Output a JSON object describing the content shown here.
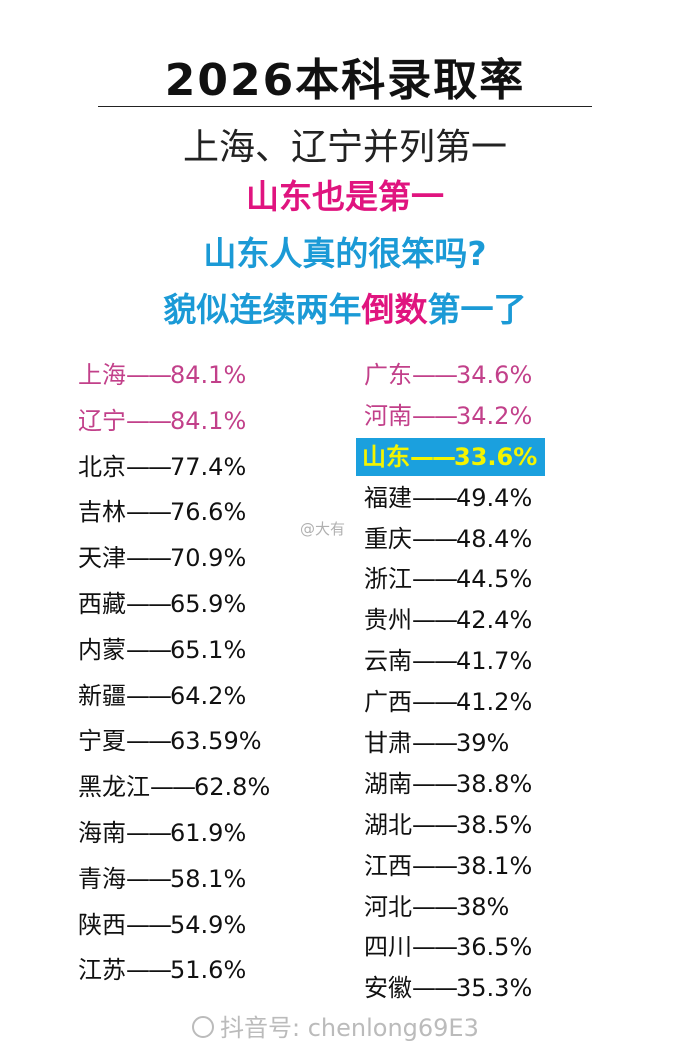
{
  "header": {
    "title": "2026本科录取率",
    "line1": "上海、辽宁并列第一",
    "line2": "山东也是第一",
    "line3": "山东人真的很笨吗?",
    "line4_a": "貌似连续两年",
    "line4_b": "倒数",
    "line4_c": "第一了"
  },
  "colors": {
    "pink": "#e0147f",
    "blue": "#1b9ad6",
    "highlight_bg": "#1ba0de",
    "highlight_text": "#f4f400"
  },
  "left_list": [
    {
      "province": "上海",
      "sep": "——",
      "rate": "84.1%",
      "style": "pink"
    },
    {
      "province": "辽宁",
      "sep": "——",
      "rate": "84.1%",
      "style": "pink"
    },
    {
      "province": "北京",
      "sep": "——",
      "rate": "77.4%",
      "style": "normal"
    },
    {
      "province": "吉林",
      "sep": "——",
      "rate": "76.6%",
      "style": "normal"
    },
    {
      "province": "天津",
      "sep": "——",
      "rate": "70.9%",
      "style": "normal"
    },
    {
      "province": "西藏",
      "sep": "——",
      "rate": "65.9%",
      "style": "normal"
    },
    {
      "province": "内蒙",
      "sep": "——",
      "rate": "65.1%",
      "style": "normal"
    },
    {
      "province": "新疆",
      "sep": "——",
      "rate": "64.2%",
      "style": "normal"
    },
    {
      "province": "宁夏",
      "sep": "——",
      "rate": "63.59%",
      "style": "normal"
    },
    {
      "province": "黑龙江",
      "sep": "——",
      "rate": "62.8%",
      "style": "normal"
    },
    {
      "province": "海南",
      "sep": "——",
      "rate": "61.9%",
      "style": "normal"
    },
    {
      "province": "青海",
      "sep": "——",
      "rate": "58.1%",
      "style": "normal"
    },
    {
      "province": "陕西",
      "sep": "——",
      "rate": "54.9%",
      "style": "normal"
    },
    {
      "province": "江苏",
      "sep": "——",
      "rate": "51.6%",
      "style": "normal"
    }
  ],
  "right_list": [
    {
      "province": "广东",
      "sep": "——",
      "rate": "34.6%",
      "style": "pink"
    },
    {
      "province": "河南",
      "sep": "——",
      "rate": "34.2%",
      "style": "pink"
    },
    {
      "province": "山东",
      "sep": "——",
      "rate": "33.6%",
      "style": "highlight"
    },
    {
      "province": "福建",
      "sep": "——",
      "rate": "49.4%",
      "style": "normal"
    },
    {
      "province": "重庆",
      "sep": "——",
      "rate": "48.4%",
      "style": "normal"
    },
    {
      "province": "浙江",
      "sep": "——",
      "rate": "44.5%",
      "style": "normal"
    },
    {
      "province": "贵州",
      "sep": "——",
      "rate": "42.4%",
      "style": "normal"
    },
    {
      "province": "云南",
      "sep": "——",
      "rate": "41.7%",
      "style": "normal"
    },
    {
      "province": "广西",
      "sep": "——",
      "rate": "41.2%",
      "style": "normal"
    },
    {
      "province": "甘肃",
      "sep": "——",
      "rate": "39%",
      "style": "normal"
    },
    {
      "province": "湖南",
      "sep": "——",
      "rate": "38.8%",
      "style": "normal"
    },
    {
      "province": "湖北",
      "sep": "——",
      "rate": "38.5%",
      "style": "normal"
    },
    {
      "province": "江西",
      "sep": "——",
      "rate": "38.1%",
      "style": "normal"
    },
    {
      "province": "河北",
      "sep": "——",
      "rate": "38%",
      "style": "normal"
    },
    {
      "province": "四川",
      "sep": "——",
      "rate": "36.5%",
      "style": "normal"
    },
    {
      "province": "安徽",
      "sep": "——",
      "rate": "35.3%",
      "style": "normal"
    }
  ],
  "watermarks": {
    "middle": "@大有",
    "bottom": "抖音号: chenlong69E3"
  }
}
